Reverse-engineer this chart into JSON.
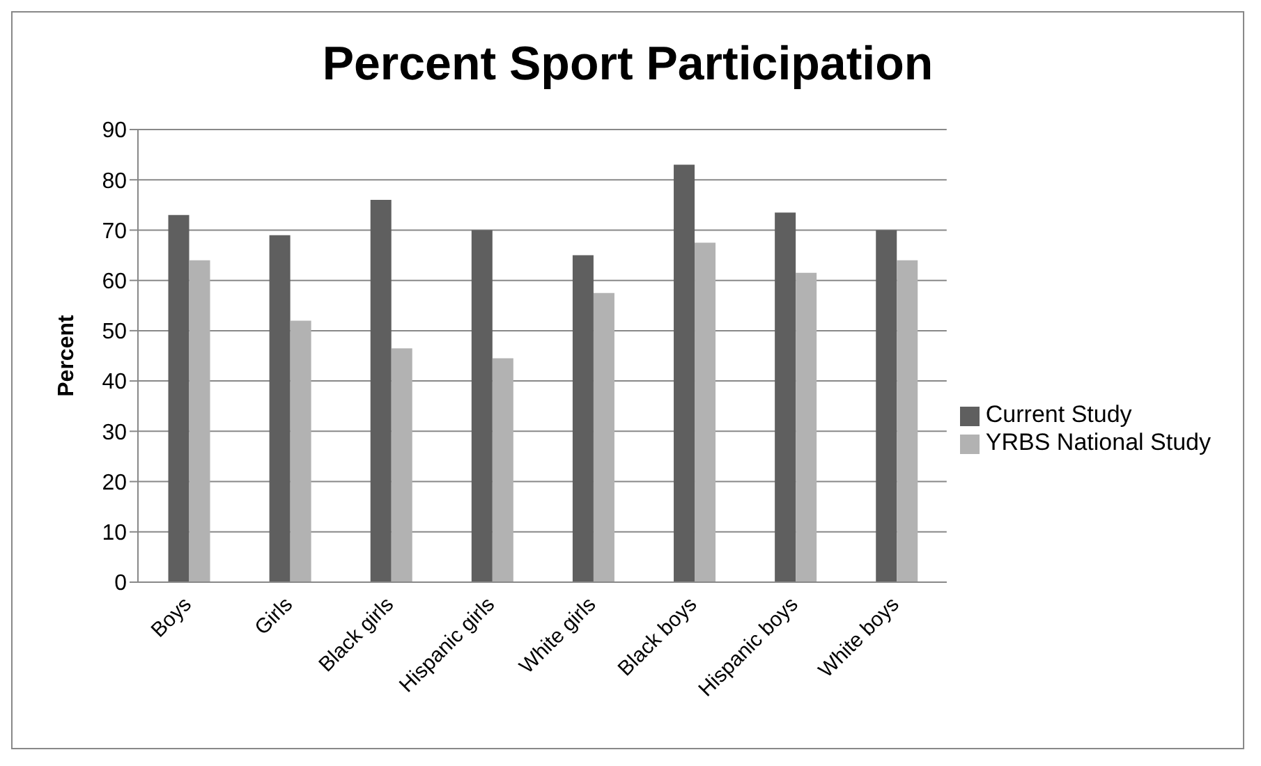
{
  "chart_data": {
    "type": "bar",
    "title": "Percent Sport Participation",
    "ylabel": "Percent",
    "categories": [
      "Boys",
      "Girls",
      "Black girls",
      "Hispanic girls",
      "White girls",
      "Black boys",
      "Hispanic boys",
      "White boys"
    ],
    "series": [
      {
        "name": "Current Study",
        "color": "#5f5f5f",
        "values": [
          73,
          69,
          76,
          70,
          65,
          83,
          73.5,
          70
        ]
      },
      {
        "name": "YRBS National Study",
        "color": "#b2b2b2",
        "values": [
          64,
          52,
          46.5,
          44.5,
          57.5,
          67.5,
          61.5,
          64
        ]
      }
    ],
    "ylim": [
      0,
      90
    ],
    "yticks": [
      0,
      10,
      20,
      30,
      40,
      50,
      60,
      70,
      80,
      90
    ],
    "grid": "y",
    "legend": "right"
  }
}
